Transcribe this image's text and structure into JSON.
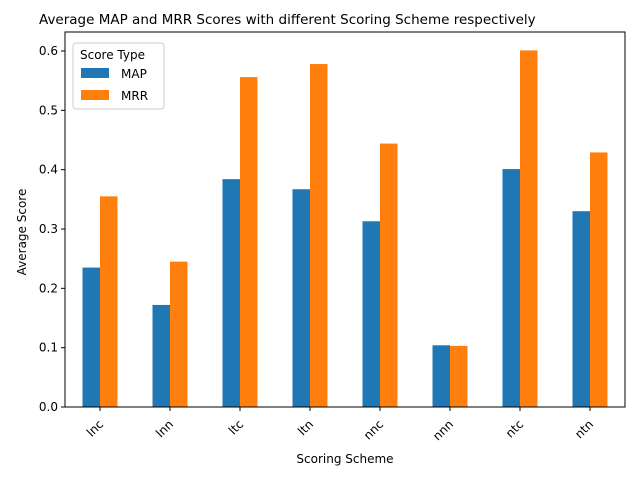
{
  "chart_data": {
    "type": "bar",
    "title": "Average MAP and MRR Scores with different Scoring Scheme respectively",
    "xlabel": "Scoring Scheme",
    "ylabel": "Average Score",
    "categories": [
      "lnc",
      "lnn",
      "ltc",
      "ltn",
      "nnc",
      "nnn",
      "ntc",
      "ntn"
    ],
    "series": [
      {
        "name": "MAP",
        "color": "#1f77b4",
        "values": [
          0.235,
          0.172,
          0.384,
          0.367,
          0.313,
          0.104,
          0.401,
          0.33
        ]
      },
      {
        "name": "MRR",
        "color": "#ff7f0e",
        "values": [
          0.355,
          0.245,
          0.556,
          0.578,
          0.444,
          0.103,
          0.601,
          0.429
        ]
      }
    ],
    "ylim": [
      0,
      0.632
    ],
    "yticks": [
      0.0,
      0.1,
      0.2,
      0.3,
      0.4,
      0.5,
      0.6
    ],
    "ytick_labels": [
      "0.0",
      "0.1",
      "0.2",
      "0.3",
      "0.4",
      "0.5",
      "0.6"
    ],
    "xtick_rotation": 45,
    "grid": false,
    "legend": {
      "title": "Score Type",
      "placement": "top-left"
    }
  }
}
